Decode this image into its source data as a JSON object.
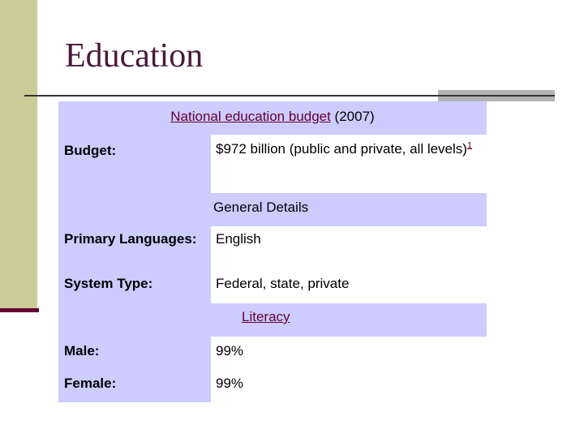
{
  "slide": {
    "title": "Education"
  },
  "table": {
    "header": {
      "link_text": "National education budget",
      "suffix": " (2007)"
    },
    "budget": {
      "label": "Budget:",
      "value": "$972 billion (public and private, all levels)",
      "footnote": "1"
    },
    "general_details": {
      "heading": "General Details",
      "rows": [
        {
          "label": "Primary Languages:",
          "value": "English"
        },
        {
          "label": "System Type:",
          "value": "Federal, state, private"
        }
      ]
    },
    "literacy": {
      "heading": "Literacy",
      "rows": [
        {
          "label": "Male:",
          "value": "99%"
        },
        {
          "label": "Female:",
          "value": "99%"
        }
      ]
    }
  },
  "colors": {
    "sidebar": "#cccc99",
    "sidebar_base": "#660033",
    "table_fill": "#ccccff",
    "link": "#660033",
    "title": "#4a1a3a"
  }
}
